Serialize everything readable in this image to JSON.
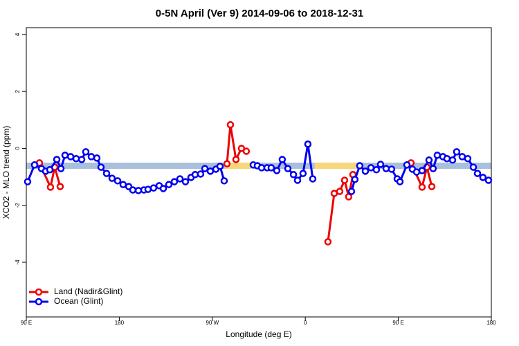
{
  "chart_data": {
    "type": "line",
    "title": "0-5N April (Ver 9)   2014-09-06 to 2018-12-31",
    "x_label": "Longitude (deg E)",
    "y_label": "XCO2 - MLO trend (ppm)",
    "xlim": [
      90,
      540
    ],
    "ylim": [
      -5.92,
      4.24
    ],
    "xticks": [
      {
        "value": 90,
        "label": "90 E"
      },
      {
        "value": 180,
        "label": "180"
      },
      {
        "value": 270,
        "label": "90 W"
      },
      {
        "value": 360,
        "label": "0"
      },
      {
        "value": 450,
        "label": "90 E"
      },
      {
        "value": 540,
        "label": "180"
      }
    ],
    "yticks": [
      -4,
      -2,
      0,
      2,
      4
    ],
    "legend": "bottomleft",
    "bands": [
      {
        "xmin": 90,
        "xmax": 540,
        "ymin": -0.72,
        "ymax": -0.5,
        "color": "#a9bfdc"
      },
      {
        "xmin": 282,
        "xmax": 309,
        "ymin": -0.72,
        "ymax": -0.5,
        "color": "#f8d77a"
      },
      {
        "xmin": 369,
        "xmax": 409.5,
        "ymin": -0.72,
        "ymax": -0.5,
        "color": "#f8d77a"
      }
    ],
    "series": [
      {
        "name": "Land (Nadir&Glint)",
        "color": "#ee0000",
        "x": [
          102.7,
          113.4,
          117.5,
          122.8,
          null,
          284.2,
          287.5,
          292.9,
          298.2,
          302.9,
          null,
          381.9,
          388,
          393.3,
          398,
          402,
          406.1,
          null,
          462.3,
          473,
          477.7,
          482.4
        ],
        "values": [
          -0.51,
          -1.36,
          -0.66,
          -1.34,
          null,
          -0.54,
          0.83,
          -0.39,
          0,
          -0.1,
          null,
          -3.28,
          -1.58,
          -1.51,
          -1.12,
          -1.7,
          -0.92,
          null,
          -0.51,
          -1.36,
          -0.66,
          -1.34
        ]
      },
      {
        "name": "Ocean (Glint)",
        "color": "#0000ee",
        "x": [
          91.3,
          98,
          104.7,
          108.7,
          112.8,
          119.5,
          123.5,
          127.5,
          132.9,
          138.2,
          143.6,
          147.6,
          152.9,
          158.3,
          162.3,
          167.7,
          173,
          178.4,
          183.7,
          189.1,
          193.1,
          198.5,
          203.8,
          207.8,
          213.2,
          218.6,
          222.6,
          227.9,
          233.3,
          238.7,
          244,
          249.4,
          253.4,
          258.7,
          262.8,
          268.1,
          273.5,
          277.5,
          281.5,
          null,
          309.6,
          313.6,
          317.7,
          323,
          327,
          332.4,
          337.7,
          343.1,
          348.5,
          352.5,
          357.8,
          362.5,
          367.2,
          null,
          404.7,
          408,
          412.7,
          418.1,
          423.5,
          428.8,
          432.8,
          438.2,
          443.5,
          448.9,
          451.6,
          458.3,
          463.6,
          467.7,
          473,
          479.7,
          483.7,
          487.7,
          493.1,
          497.1,
          502.5,
          506.5,
          511.8,
          517.2,
          522.6,
          526.6,
          531.9,
          537.3
        ],
        "values": [
          -1.17,
          -0.58,
          -0.71,
          -0.8,
          -0.75,
          -0.39,
          -0.71,
          -0.24,
          -0.29,
          -0.36,
          -0.39,
          -0.12,
          -0.29,
          -0.34,
          -0.66,
          -0.88,
          -1.05,
          -1.14,
          -1.27,
          -1.34,
          -1.46,
          -1.48,
          -1.46,
          -1.44,
          -1.39,
          -1.31,
          -1.41,
          -1.27,
          -1.17,
          -1.07,
          -1.17,
          -1.02,
          -0.92,
          -0.9,
          -0.71,
          -0.8,
          -0.73,
          -0.63,
          -1.14,
          null,
          -0.58,
          -0.61,
          -0.68,
          -0.68,
          -0.68,
          -0.78,
          -0.39,
          -0.71,
          -0.92,
          -1.12,
          -0.88,
          0.15,
          -1.07,
          null,
          -1.51,
          -1.09,
          -0.61,
          -0.8,
          -0.68,
          -0.75,
          -0.56,
          -0.71,
          -0.73,
          -1.07,
          -1.17,
          -0.58,
          -0.73,
          -0.83,
          -0.78,
          -0.41,
          -0.71,
          -0.24,
          -0.29,
          -0.36,
          -0.41,
          -0.12,
          -0.29,
          -0.36,
          -0.66,
          -0.88,
          -1.02,
          -1.12
        ]
      }
    ]
  }
}
